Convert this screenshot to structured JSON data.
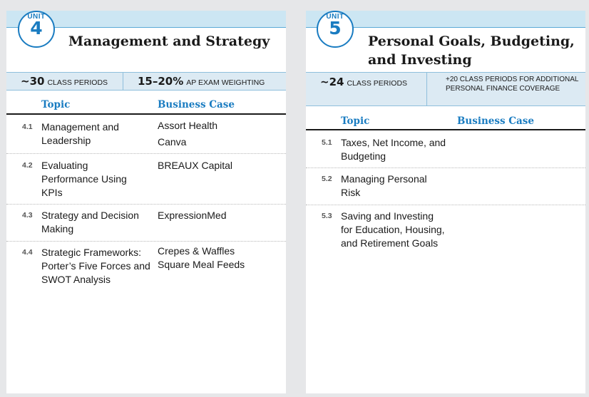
{
  "unit4": {
    "unit_label": "UNIT",
    "number": "4",
    "title": "Management and Strategy",
    "periods_value": "~30",
    "periods_label": "CLASS PERIODS",
    "weighting_value": "15–20%",
    "weighting_label": "AP EXAM WEIGHTING",
    "col_topic": "Topic",
    "col_case": "Business Case",
    "rows": [
      {
        "num": "4.1",
        "topic": "Management and Leadership",
        "cases": [
          "Assort Health",
          "Canva"
        ]
      },
      {
        "num": "4.2",
        "topic": "Evaluating Performance Using KPIs",
        "cases": [
          "BREAUX Capital"
        ]
      },
      {
        "num": "4.3",
        "topic": "Strategy and Decision Making",
        "cases": [
          "ExpressionMed"
        ]
      },
      {
        "num": "4.4",
        "topic": "Strategic Frameworks: Porter’s Five Forces and SWOT Analysis",
        "cases": [
          "Crepes & Waffles",
          "Square Meal Feeds"
        ]
      }
    ]
  },
  "unit5": {
    "unit_label": "UNIT",
    "number": "5",
    "title_line1": "Personal Goals, Budgeting,",
    "title_line2": "and Investing",
    "periods_value": "~24",
    "periods_label": "CLASS PERIODS",
    "extra_label": "+20 CLASS PERIODS FOR ADDITIONAL PERSONAL FINANCE COVERAGE",
    "col_topic": "Topic",
    "col_case": "Business Case",
    "rows": [
      {
        "num": "5.1",
        "topic": "Taxes, Net Income, and Budgeting",
        "cases": []
      },
      {
        "num": "5.2",
        "topic": "Managing Personal Risk",
        "cases": []
      },
      {
        "num": "5.3",
        "topic": "Saving and Investing for Education, Housing, and Retirement Goals",
        "cases": []
      }
    ]
  }
}
